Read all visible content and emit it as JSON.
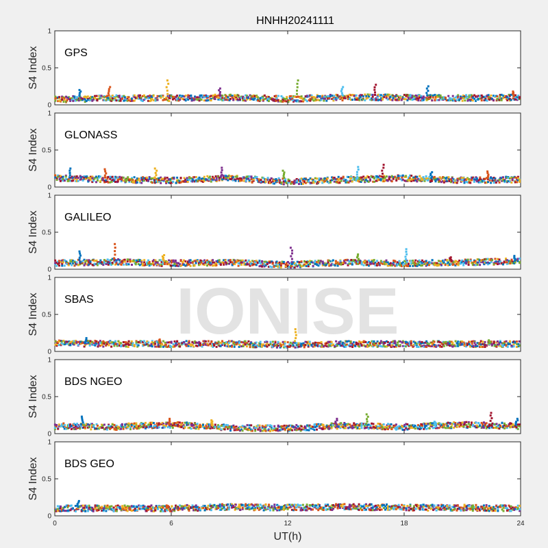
{
  "title": "HNHH20241111",
  "watermark": "IONISE",
  "chart_data": {
    "type": "scatter",
    "title": "HNHH20241111",
    "xlabel": "UT(h)",
    "ylabel": "S4 Index",
    "xlim": [
      0,
      24
    ],
    "ylim": [
      0,
      1
    ],
    "xticks": [
      "0",
      "6",
      "12",
      "18",
      "24"
    ],
    "yticks": [
      "0",
      "0.5",
      "1"
    ],
    "grid": false,
    "series_colors": [
      "#0072BD",
      "#D95319",
      "#EDB120",
      "#7E2F8E",
      "#77AC30",
      "#4DBEEE",
      "#A2142F"
    ],
    "panels": [
      {
        "name": "GPS",
        "baseline": [
          [
            0,
            0.07
          ],
          [
            3,
            0.09
          ],
          [
            6,
            0.09
          ],
          [
            9,
            0.1
          ],
          [
            12,
            0.08
          ],
          [
            15,
            0.1
          ],
          [
            18,
            0.1
          ],
          [
            21,
            0.09
          ],
          [
            24,
            0.1
          ]
        ],
        "spikes": [
          [
            1.3,
            0.2
          ],
          [
            2.8,
            0.24
          ],
          [
            5.8,
            0.33
          ],
          [
            8.5,
            0.22
          ],
          [
            12.5,
            0.33
          ],
          [
            14.8,
            0.24
          ],
          [
            16.5,
            0.27
          ],
          [
            19.2,
            0.25
          ],
          [
            23.6,
            0.18
          ]
        ]
      },
      {
        "name": "GLONASS",
        "baseline": [
          [
            0,
            0.12
          ],
          [
            3,
            0.1
          ],
          [
            6,
            0.09
          ],
          [
            9,
            0.12
          ],
          [
            12,
            0.07
          ],
          [
            15,
            0.1
          ],
          [
            18,
            0.12
          ],
          [
            21,
            0.09
          ],
          [
            24,
            0.1
          ]
        ],
        "spikes": [
          [
            0.8,
            0.25
          ],
          [
            2.6,
            0.24
          ],
          [
            5.2,
            0.25
          ],
          [
            8.6,
            0.26
          ],
          [
            11.8,
            0.22
          ],
          [
            15.6,
            0.27
          ],
          [
            16.9,
            0.3
          ],
          [
            19.4,
            0.2
          ],
          [
            22.3,
            0.21
          ]
        ]
      },
      {
        "name": "GALILEO",
        "baseline": [
          [
            0,
            0.08
          ],
          [
            3,
            0.1
          ],
          [
            6,
            0.08
          ],
          [
            9,
            0.09
          ],
          [
            12,
            0.06
          ],
          [
            15,
            0.09
          ],
          [
            18,
            0.08
          ],
          [
            21,
            0.09
          ],
          [
            24,
            0.11
          ]
        ],
        "spikes": [
          [
            1.3,
            0.24
          ],
          [
            3.1,
            0.34
          ],
          [
            5.6,
            0.19
          ],
          [
            12.2,
            0.29
          ],
          [
            15.6,
            0.2
          ],
          [
            18.1,
            0.27
          ],
          [
            20.4,
            0.16
          ],
          [
            23.7,
            0.18
          ]
        ]
      },
      {
        "name": "SBAS",
        "baseline": [
          [
            0,
            0.11
          ],
          [
            3,
            0.1
          ],
          [
            6,
            0.1
          ],
          [
            9,
            0.1
          ],
          [
            12,
            0.09
          ],
          [
            15,
            0.1
          ],
          [
            18,
            0.1
          ],
          [
            21,
            0.1
          ],
          [
            24,
            0.1
          ]
        ],
        "spikes": [
          [
            1.6,
            0.18
          ],
          [
            5.4,
            0.16
          ],
          [
            12.4,
            0.3
          ],
          [
            17.5,
            0.14
          ],
          [
            22.4,
            0.15
          ]
        ]
      },
      {
        "name": "BDS NGEO",
        "baseline": [
          [
            0,
            0.1
          ],
          [
            3,
            0.09
          ],
          [
            6,
            0.12
          ],
          [
            9,
            0.08
          ],
          [
            12,
            0.07
          ],
          [
            15,
            0.11
          ],
          [
            18,
            0.09
          ],
          [
            21,
            0.12
          ],
          [
            24,
            0.1
          ]
        ],
        "spikes": [
          [
            1.4,
            0.23
          ],
          [
            5.9,
            0.2
          ],
          [
            8.1,
            0.18
          ],
          [
            14.5,
            0.2
          ],
          [
            16.1,
            0.26
          ],
          [
            19.6,
            0.16
          ],
          [
            22.5,
            0.28
          ],
          [
            23.8,
            0.2
          ]
        ]
      },
      {
        "name": "BDS GEO",
        "baseline": [
          [
            0,
            0.1
          ],
          [
            3,
            0.1
          ],
          [
            6,
            0.1
          ],
          [
            9,
            0.12
          ],
          [
            12,
            0.11
          ],
          [
            15,
            0.12
          ],
          [
            18,
            0.11
          ],
          [
            21,
            0.11
          ],
          [
            24,
            0.1
          ]
        ],
        "spikes": [
          [
            1.2,
            0.2
          ],
          [
            5.8,
            0.14
          ],
          [
            9.5,
            0.15
          ],
          [
            15.2,
            0.15
          ],
          [
            21.5,
            0.14
          ]
        ]
      }
    ]
  }
}
